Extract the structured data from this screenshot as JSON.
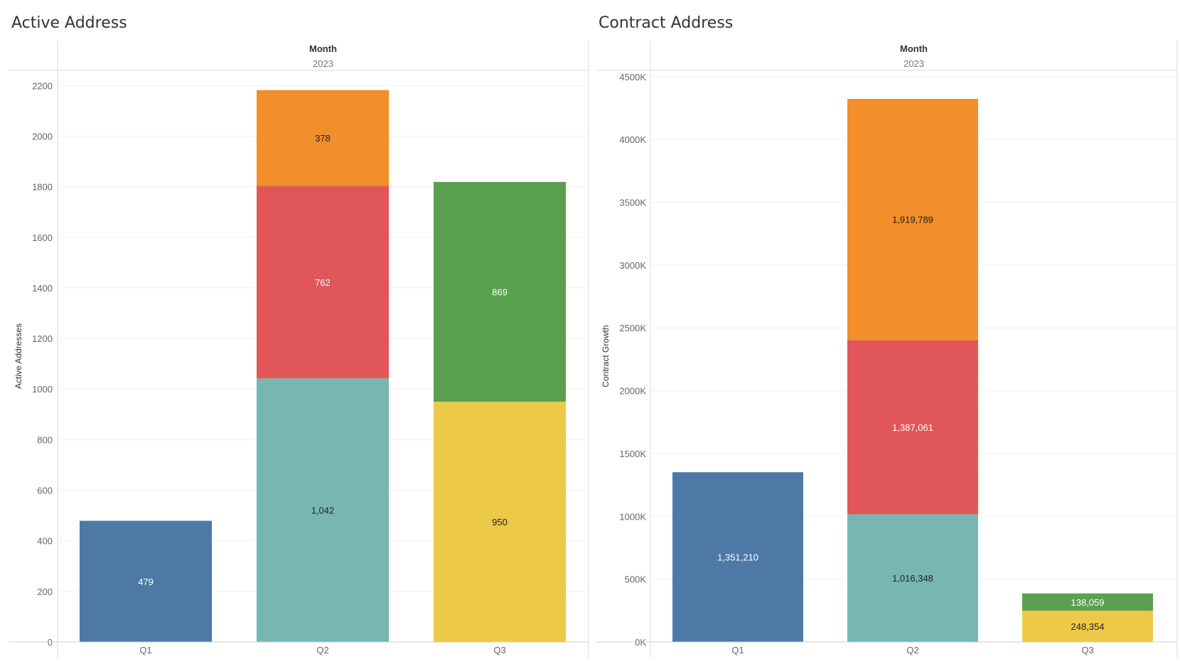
{
  "chart_data": [
    {
      "type": "bar",
      "title": "Active Address",
      "header_field": "Month",
      "header_value": "2023",
      "ylabel": "Active Addresses",
      "categories": [
        "Q1",
        "Q2",
        "Q3"
      ],
      "yticks": [
        0,
        200,
        400,
        600,
        800,
        1000,
        1200,
        1400,
        1600,
        1800,
        2000,
        2200
      ],
      "ytick_labels": [
        "0",
        "200",
        "400",
        "600",
        "800",
        "1000",
        "1200",
        "1400",
        "1600",
        "1800",
        "2000",
        "2200"
      ],
      "ylim": [
        0,
        2260
      ],
      "segments": [
        {
          "category": "Q1",
          "value": 479,
          "label": "479",
          "color": "#4e79a7",
          "text_color": "#ffffff"
        },
        {
          "category": "Q2",
          "value": 1042,
          "label": "1,042",
          "color": "#76b7b2",
          "text_color": "#222222"
        },
        {
          "category": "Q2",
          "value": 762,
          "label": "762",
          "color": "#e15759",
          "text_color": "#ffffff"
        },
        {
          "category": "Q2",
          "value": 378,
          "label": "378",
          "color": "#f28e2b",
          "text_color": "#222222"
        },
        {
          "category": "Q3",
          "value": 950,
          "label": "950",
          "color": "#edc948",
          "text_color": "#222222"
        },
        {
          "category": "Q3",
          "value": 869,
          "label": "869",
          "color": "#59a14f",
          "text_color": "#ffffff"
        }
      ]
    },
    {
      "type": "bar",
      "title": "Contract Address",
      "header_field": "Month",
      "header_value": "2023",
      "ylabel": "Contract Growth",
      "categories": [
        "Q1",
        "Q2",
        "Q3"
      ],
      "yticks": [
        0,
        500000,
        1000000,
        1500000,
        2000000,
        2500000,
        3000000,
        3500000,
        4000000,
        4500000
      ],
      "ytick_labels": [
        "0K",
        "500K",
        "1000K",
        "1500K",
        "2000K",
        "2500K",
        "3000K",
        "3500K",
        "4000K",
        "4500K"
      ],
      "ylim": [
        0,
        4550000
      ],
      "segments": [
        {
          "category": "Q1",
          "value": 1351210,
          "label": "1,351,210",
          "color": "#4e79a7",
          "text_color": "#ffffff"
        },
        {
          "category": "Q2",
          "value": 1016348,
          "label": "1,016,348",
          "color": "#76b7b2",
          "text_color": "#222222"
        },
        {
          "category": "Q2",
          "value": 1387061,
          "label": "1,387,061",
          "color": "#e15759",
          "text_color": "#ffffff"
        },
        {
          "category": "Q2",
          "value": 1919789,
          "label": "1,919,789",
          "color": "#f28e2b",
          "text_color": "#222222"
        },
        {
          "category": "Q3",
          "value": 248354,
          "label": "248,354",
          "color": "#edc948",
          "text_color": "#222222"
        },
        {
          "category": "Q3",
          "value": 138059,
          "label": "138,059",
          "color": "#59a14f",
          "text_color": "#ffffff"
        }
      ]
    }
  ]
}
